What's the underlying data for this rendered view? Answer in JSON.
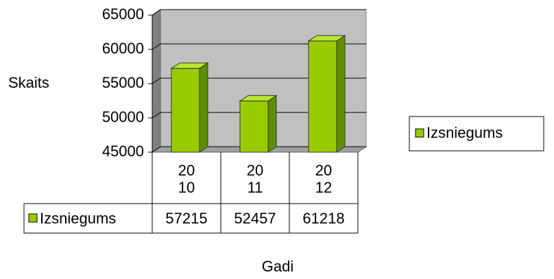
{
  "chart_data": {
    "type": "bar",
    "x_label": "Gadi",
    "y_label": "Skaits",
    "categories": [
      "2010",
      "2011",
      "2012"
    ],
    "series": [
      {
        "name": "Izsniegums",
        "color": "#99cc00",
        "values": [
          57215,
          52457,
          61218
        ]
      }
    ],
    "ylim": [
      45000,
      65000
    ],
    "yticks": [
      45000,
      50000,
      55000,
      60000,
      65000
    ],
    "grid": true,
    "legend": "right",
    "data_table": true
  }
}
